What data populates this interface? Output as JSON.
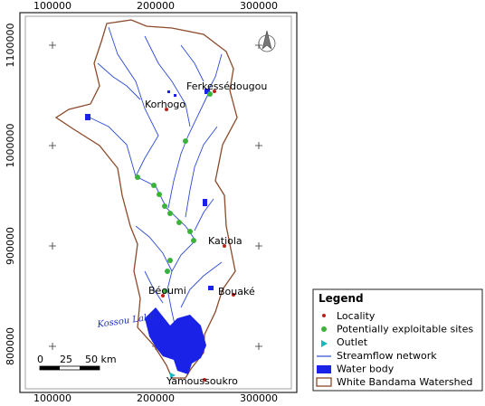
{
  "map": {
    "x_ticks": [
      100000,
      200000,
      300000
    ],
    "y_ticks": [
      800000,
      900000,
      1000000,
      1100000
    ],
    "places": [
      "Ferkessédougou",
      "Korhogo",
      "Katiola",
      "Béoumi",
      "Bouaké",
      "Yamoussoukro"
    ],
    "lake_label": "Kossou Lake",
    "scale_labels": [
      "0",
      "25",
      "50 km"
    ],
    "legend": {
      "title": "Legend",
      "items": [
        "Locality",
        "Potentially exploitable sites",
        "Outlet",
        "Streamflow network",
        "Water body",
        "White Bandama Watershed"
      ]
    }
  }
}
